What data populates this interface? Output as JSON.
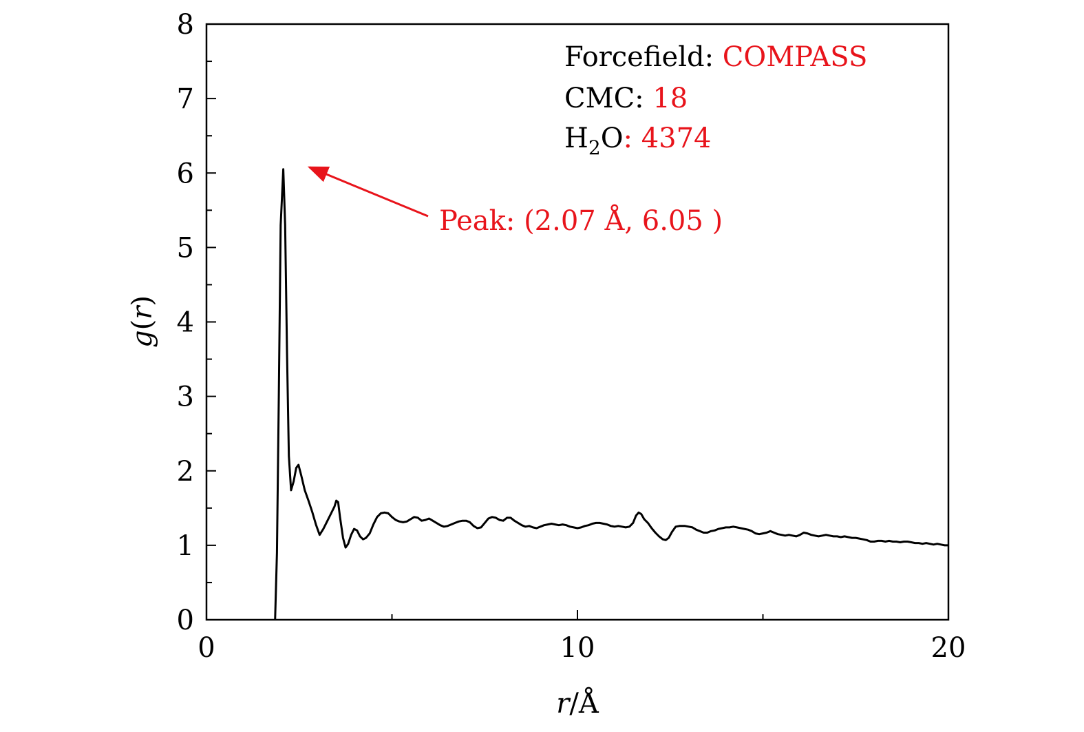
{
  "chart_data": {
    "type": "line",
    "xlabel": {
      "var": "r",
      "sep": "/",
      "unit": "Å"
    },
    "ylabel": {
      "func": "g",
      "open": "(",
      "var": "r",
      "close": ")"
    },
    "xlim": [
      0,
      20
    ],
    "ylim": [
      0,
      8
    ],
    "x_ticks": [
      "0",
      "10",
      "20"
    ],
    "y_ticks": [
      "0",
      "1",
      "2",
      "3",
      "4",
      "5",
      "6",
      "7",
      "8"
    ],
    "grid": false,
    "legend": {
      "placement": "top-right",
      "lines": [
        {
          "key": "Forcefield: ",
          "value": "COMPASS"
        },
        {
          "key": "CMC: ",
          "value": "18"
        },
        {
          "key": "H",
          "sub": "2",
          "key_tail": "O",
          "value": ": 4374"
        }
      ]
    },
    "annotation": {
      "text": "Peak: (2.07 Å, 6.05 )",
      "points_to": [
        2.07,
        6.05
      ]
    },
    "colors": {
      "line": "#000000",
      "highlight": "#e8141b"
    },
    "series": [
      {
        "values": [
          [
            1.85,
            0.0
          ],
          [
            1.9,
            0.9
          ],
          [
            1.95,
            3.0
          ],
          [
            2.0,
            5.3
          ],
          [
            2.07,
            6.05
          ],
          [
            2.12,
            5.3
          ],
          [
            2.17,
            3.6
          ],
          [
            2.22,
            2.2
          ],
          [
            2.28,
            1.74
          ],
          [
            2.35,
            1.86
          ],
          [
            2.42,
            2.04
          ],
          [
            2.48,
            2.08
          ],
          [
            2.55,
            1.95
          ],
          [
            2.65,
            1.74
          ],
          [
            2.75,
            1.6
          ],
          [
            2.85,
            1.45
          ],
          [
            2.95,
            1.28
          ],
          [
            3.05,
            1.14
          ],
          [
            3.15,
            1.22
          ],
          [
            3.25,
            1.32
          ],
          [
            3.35,
            1.42
          ],
          [
            3.45,
            1.52
          ],
          [
            3.5,
            1.6
          ],
          [
            3.55,
            1.58
          ],
          [
            3.6,
            1.38
          ],
          [
            3.68,
            1.1
          ],
          [
            3.75,
            0.97
          ],
          [
            3.82,
            1.02
          ],
          [
            3.9,
            1.14
          ],
          [
            3.98,
            1.22
          ],
          [
            4.06,
            1.2
          ],
          [
            4.14,
            1.12
          ],
          [
            4.22,
            1.08
          ],
          [
            4.3,
            1.1
          ],
          [
            4.4,
            1.16
          ],
          [
            4.5,
            1.28
          ],
          [
            4.6,
            1.38
          ],
          [
            4.7,
            1.43
          ],
          [
            4.8,
            1.44
          ],
          [
            4.9,
            1.43
          ],
          [
            5.0,
            1.38
          ],
          [
            5.1,
            1.34
          ],
          [
            5.2,
            1.32
          ],
          [
            5.3,
            1.31
          ],
          [
            5.4,
            1.32
          ],
          [
            5.5,
            1.35
          ],
          [
            5.6,
            1.38
          ],
          [
            5.7,
            1.37
          ],
          [
            5.8,
            1.33
          ],
          [
            5.9,
            1.34
          ],
          [
            6.0,
            1.36
          ],
          [
            6.1,
            1.33
          ],
          [
            6.2,
            1.3
          ],
          [
            6.3,
            1.27
          ],
          [
            6.4,
            1.25
          ],
          [
            6.5,
            1.26
          ],
          [
            6.6,
            1.28
          ],
          [
            6.7,
            1.3
          ],
          [
            6.8,
            1.32
          ],
          [
            6.9,
            1.33
          ],
          [
            7.0,
            1.33
          ],
          [
            7.1,
            1.31
          ],
          [
            7.2,
            1.26
          ],
          [
            7.3,
            1.23
          ],
          [
            7.4,
            1.24
          ],
          [
            7.5,
            1.3
          ],
          [
            7.6,
            1.36
          ],
          [
            7.7,
            1.38
          ],
          [
            7.8,
            1.37
          ],
          [
            7.9,
            1.34
          ],
          [
            8.0,
            1.33
          ],
          [
            8.1,
            1.37
          ],
          [
            8.2,
            1.37
          ],
          [
            8.3,
            1.33
          ],
          [
            8.4,
            1.3
          ],
          [
            8.5,
            1.27
          ],
          [
            8.6,
            1.25
          ],
          [
            8.7,
            1.26
          ],
          [
            8.8,
            1.24
          ],
          [
            8.9,
            1.23
          ],
          [
            9.0,
            1.25
          ],
          [
            9.1,
            1.27
          ],
          [
            9.2,
            1.28
          ],
          [
            9.3,
            1.29
          ],
          [
            9.4,
            1.28
          ],
          [
            9.5,
            1.27
          ],
          [
            9.6,
            1.28
          ],
          [
            9.7,
            1.27
          ],
          [
            9.8,
            1.25
          ],
          [
            9.9,
            1.24
          ],
          [
            10.0,
            1.23
          ],
          [
            10.1,
            1.24
          ],
          [
            10.2,
            1.26
          ],
          [
            10.3,
            1.27
          ],
          [
            10.4,
            1.29
          ],
          [
            10.5,
            1.3
          ],
          [
            10.6,
            1.3
          ],
          [
            10.7,
            1.29
          ],
          [
            10.8,
            1.28
          ],
          [
            10.9,
            1.26
          ],
          [
            11.0,
            1.25
          ],
          [
            11.1,
            1.26
          ],
          [
            11.2,
            1.25
          ],
          [
            11.3,
            1.24
          ],
          [
            11.4,
            1.25
          ],
          [
            11.5,
            1.3
          ],
          [
            11.58,
            1.4
          ],
          [
            11.65,
            1.44
          ],
          [
            11.72,
            1.42
          ],
          [
            11.8,
            1.35
          ],
          [
            11.9,
            1.3
          ],
          [
            12.0,
            1.23
          ],
          [
            12.1,
            1.17
          ],
          [
            12.2,
            1.12
          ],
          [
            12.3,
            1.08
          ],
          [
            12.38,
            1.07
          ],
          [
            12.46,
            1.1
          ],
          [
            12.55,
            1.18
          ],
          [
            12.65,
            1.25
          ],
          [
            12.75,
            1.26
          ],
          [
            12.9,
            1.26
          ],
          [
            13.0,
            1.25
          ],
          [
            13.1,
            1.24
          ],
          [
            13.2,
            1.21
          ],
          [
            13.3,
            1.19
          ],
          [
            13.4,
            1.17
          ],
          [
            13.5,
            1.17
          ],
          [
            13.6,
            1.19
          ],
          [
            13.7,
            1.2
          ],
          [
            13.8,
            1.22
          ],
          [
            13.9,
            1.23
          ],
          [
            14.0,
            1.24
          ],
          [
            14.1,
            1.24
          ],
          [
            14.2,
            1.25
          ],
          [
            14.3,
            1.24
          ],
          [
            14.4,
            1.23
          ],
          [
            14.5,
            1.22
          ],
          [
            14.6,
            1.21
          ],
          [
            14.7,
            1.19
          ],
          [
            14.8,
            1.16
          ],
          [
            14.9,
            1.15
          ],
          [
            15.0,
            1.16
          ],
          [
            15.1,
            1.17
          ],
          [
            15.2,
            1.19
          ],
          [
            15.3,
            1.17
          ],
          [
            15.4,
            1.15
          ],
          [
            15.5,
            1.14
          ],
          [
            15.6,
            1.13
          ],
          [
            15.7,
            1.14
          ],
          [
            15.8,
            1.13
          ],
          [
            15.9,
            1.12
          ],
          [
            16.0,
            1.14
          ],
          [
            16.1,
            1.17
          ],
          [
            16.2,
            1.16
          ],
          [
            16.3,
            1.14
          ],
          [
            16.4,
            1.13
          ],
          [
            16.5,
            1.12
          ],
          [
            16.6,
            1.13
          ],
          [
            16.7,
            1.14
          ],
          [
            16.8,
            1.13
          ],
          [
            16.9,
            1.12
          ],
          [
            17.0,
            1.12
          ],
          [
            17.1,
            1.11
          ],
          [
            17.2,
            1.12
          ],
          [
            17.3,
            1.11
          ],
          [
            17.4,
            1.1
          ],
          [
            17.5,
            1.1
          ],
          [
            17.6,
            1.09
          ],
          [
            17.7,
            1.08
          ],
          [
            17.8,
            1.07
          ],
          [
            17.9,
            1.05
          ],
          [
            18.0,
            1.05
          ],
          [
            18.1,
            1.06
          ],
          [
            18.2,
            1.06
          ],
          [
            18.3,
            1.05
          ],
          [
            18.4,
            1.06
          ],
          [
            18.5,
            1.05
          ],
          [
            18.6,
            1.05
          ],
          [
            18.7,
            1.04
          ],
          [
            18.8,
            1.05
          ],
          [
            18.9,
            1.05
          ],
          [
            19.0,
            1.04
          ],
          [
            19.1,
            1.03
          ],
          [
            19.2,
            1.03
          ],
          [
            19.3,
            1.02
          ],
          [
            19.4,
            1.03
          ],
          [
            19.5,
            1.02
          ],
          [
            19.6,
            1.01
          ],
          [
            19.7,
            1.02
          ],
          [
            19.8,
            1.01
          ],
          [
            19.9,
            1.0
          ],
          [
            20.0,
            1.0
          ]
        ]
      }
    ]
  }
}
